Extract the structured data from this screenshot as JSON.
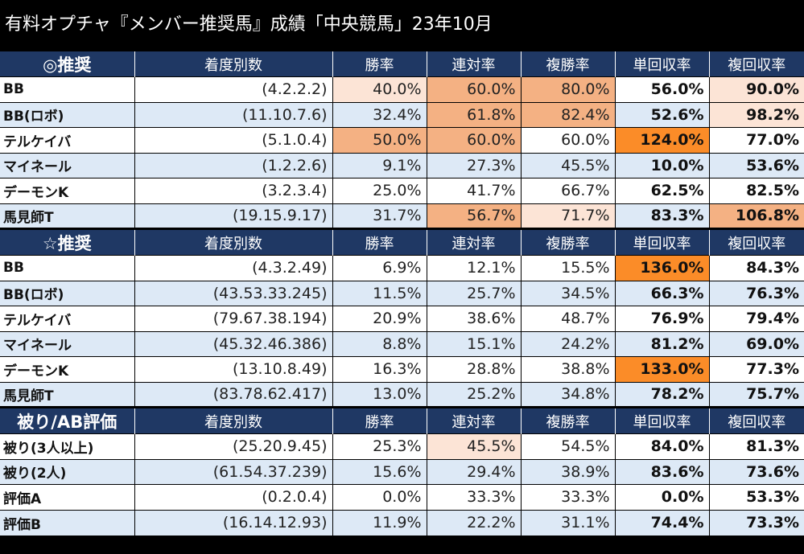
{
  "title": "有料オプチャ『メンバー推奨馬』成績「中央競馬」23年10月",
  "colors": {
    "header_bg": "#1f3864",
    "row_alt": "#dde9f6",
    "light": "#fce4d6",
    "mid": "#f4b183",
    "strong": "#fb8c28"
  },
  "sections": [
    {
      "headers": [
        "◎推奨",
        "着度別数",
        "勝率",
        "連対率",
        "複勝率",
        "単回収率",
        "複回収率"
      ],
      "rows": [
        {
          "cells": [
            "BB",
            "(4.2.2.2)",
            "40.0%",
            "60.0%",
            "80.0%",
            "56.0%",
            "90.0%"
          ],
          "hl": [
            "",
            "",
            "light",
            "mid",
            "mid",
            "",
            "light"
          ]
        },
        {
          "cells": [
            "BB(ロボ)",
            "(11.10.7.6)",
            "32.4%",
            "61.8%",
            "82.4%",
            "52.6%",
            "98.2%"
          ],
          "hl": [
            "",
            "",
            "",
            "mid",
            "mid",
            "",
            "light"
          ]
        },
        {
          "cells": [
            "テルケイバ",
            "(5.1.0.4)",
            "50.0%",
            "60.0%",
            "60.0%",
            "124.0%",
            "77.0%"
          ],
          "hl": [
            "",
            "",
            "mid",
            "mid",
            "",
            "strong",
            ""
          ]
        },
        {
          "cells": [
            "マイネール",
            "(1.2.2.6)",
            "9.1%",
            "27.3%",
            "45.5%",
            "10.0%",
            "53.6%"
          ],
          "hl": [
            "",
            "",
            "",
            "",
            "",
            "",
            ""
          ]
        },
        {
          "cells": [
            "デーモンK",
            "(3.2.3.4)",
            "25.0%",
            "41.7%",
            "66.7%",
            "62.5%",
            "82.5%"
          ],
          "hl": [
            "",
            "",
            "",
            "",
            "",
            "",
            ""
          ]
        },
        {
          "cells": [
            "馬見師T",
            "(19.15.9.17)",
            "31.7%",
            "56.7%",
            "71.7%",
            "83.3%",
            "106.8%"
          ],
          "hl": [
            "",
            "",
            "",
            "mid",
            "light",
            "",
            "mid"
          ]
        }
      ]
    },
    {
      "headers": [
        "☆推奨",
        "着度別数",
        "勝率",
        "連対率",
        "複勝率",
        "単回収率",
        "複回収率"
      ],
      "rows": [
        {
          "cells": [
            "BB",
            "(4.3.2.49)",
            "6.9%",
            "12.1%",
            "15.5%",
            "136.0%",
            "84.3%"
          ],
          "hl": [
            "",
            "",
            "",
            "",
            "",
            "strong",
            ""
          ]
        },
        {
          "cells": [
            "BB(ロボ)",
            "(43.53.33.245)",
            "11.5%",
            "25.7%",
            "34.5%",
            "66.3%",
            "76.3%"
          ],
          "hl": [
            "",
            "",
            "",
            "",
            "",
            "",
            ""
          ]
        },
        {
          "cells": [
            "テルケイバ",
            "(79.67.38.194)",
            "20.9%",
            "38.6%",
            "48.7%",
            "76.9%",
            "79.4%"
          ],
          "hl": [
            "",
            "",
            "",
            "",
            "",
            "",
            ""
          ]
        },
        {
          "cells": [
            "マイネール",
            "(45.32.46.386)",
            "8.8%",
            "15.1%",
            "24.2%",
            "81.2%",
            "69.0%"
          ],
          "hl": [
            "",
            "",
            "",
            "",
            "",
            "",
            ""
          ]
        },
        {
          "cells": [
            "デーモンK",
            "(13.10.8.49)",
            "16.3%",
            "28.8%",
            "38.8%",
            "133.0%",
            "77.3%"
          ],
          "hl": [
            "",
            "",
            "",
            "",
            "",
            "strong",
            ""
          ]
        },
        {
          "cells": [
            "馬見師T",
            "(83.78.62.417)",
            "13.0%",
            "25.2%",
            "34.8%",
            "78.2%",
            "75.7%"
          ],
          "hl": [
            "",
            "",
            "",
            "",
            "",
            "",
            ""
          ]
        }
      ]
    },
    {
      "headers": [
        "被り/AB評価",
        "着度別数",
        "勝率",
        "連対率",
        "複勝率",
        "単回収率",
        "複回収率"
      ],
      "rows": [
        {
          "cells": [
            "被り(3人以上)",
            "(25.20.9.45)",
            "25.3%",
            "45.5%",
            "54.5%",
            "84.0%",
            "81.3%"
          ],
          "hl": [
            "",
            "",
            "",
            "light",
            "",
            "",
            ""
          ]
        },
        {
          "cells": [
            "被り(2人)",
            "(61.54.37.239)",
            "15.6%",
            "29.4%",
            "38.9%",
            "83.6%",
            "73.6%"
          ],
          "hl": [
            "",
            "",
            "",
            "",
            "",
            "",
            ""
          ]
        },
        {
          "cells": [
            "評価A",
            "(0.2.0.4)",
            "0.0%",
            "33.3%",
            "33.3%",
            "0.0%",
            "53.3%"
          ],
          "hl": [
            "",
            "",
            "",
            "",
            "",
            "",
            ""
          ]
        },
        {
          "cells": [
            "評価B",
            "(16.14.12.93)",
            "11.9%",
            "22.2%",
            "31.1%",
            "74.4%",
            "73.3%"
          ],
          "hl": [
            "",
            "",
            "",
            "",
            "",
            "",
            ""
          ]
        }
      ]
    }
  ]
}
